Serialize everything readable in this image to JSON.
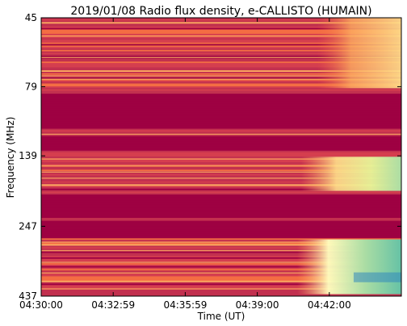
{
  "chart_data": {
    "type": "heatmap",
    "title": "2019/01/08  Radio flux density, e-CALLISTO (HUMAIN)",
    "xlabel": "Time (UT)",
    "ylabel": "Frequency (MHz)",
    "x_ticks": [
      "04:30:00",
      "04:32:59",
      "04:35:59",
      "04:39:00",
      "04:42:00"
    ],
    "x_tick_minutes": [
      0,
      3,
      6,
      9,
      12
    ],
    "xlim_minutes": [
      0,
      15
    ],
    "y_ticks": [
      "45",
      "79",
      "139",
      "247",
      "437"
    ],
    "y_tick_values": [
      45,
      79,
      139,
      247,
      437
    ],
    "ylim": [
      45,
      437
    ],
    "y_scale": "log",
    "y_direction": "increasing downward",
    "colormap": [
      "#9e0142",
      "#d53e4f",
      "#f46d43",
      "#fdae61",
      "#fee08b",
      "#ffffbf",
      "#e6f598",
      "#abdda4",
      "#66c2a5",
      "#3288bd"
    ],
    "blocked_bands_mhz": [
      [
        84,
        112
      ],
      [
        120,
        134
      ],
      [
        190,
        232
      ],
      [
        237,
        272
      ]
    ],
    "burst_onset_minutes": 11.5
  }
}
